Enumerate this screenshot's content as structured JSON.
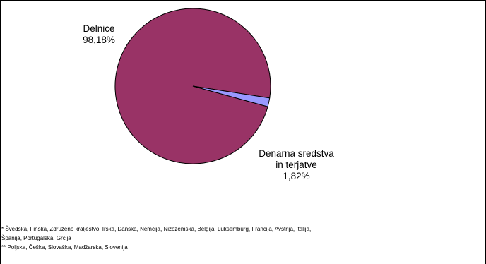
{
  "chart_data": {
    "type": "pie",
    "slices": [
      {
        "name": "Delnice",
        "value": 98.18,
        "display": "98,18%",
        "color": "#993366"
      },
      {
        "name": "Denarna sredstva in terjatve",
        "value": 1.82,
        "display": "1,82%",
        "color": "#9999FF"
      }
    ],
    "labels": {
      "slice0": {
        "line1": "Delnice",
        "line2": "98,18%"
      },
      "slice1": {
        "line1": "Denarna sredstva",
        "line2": "in terjatve",
        "line3": "1,82%"
      }
    },
    "legend": "none"
  },
  "notes": {
    "line1": "* Švedska, Finska, Združeno kraljestvo, Irska, Danska, Nemčija, Nizozemska, Belgija, Luksemburg, Francija, Avstrija, Italija,",
    "line2": "Španija, Portugalska, Grčija",
    "line3": "** Poljska, Češka, Slovaška, Madžarska, Slovenija"
  },
  "colors": {
    "frame": "#000000",
    "slice_border": "#000000"
  }
}
